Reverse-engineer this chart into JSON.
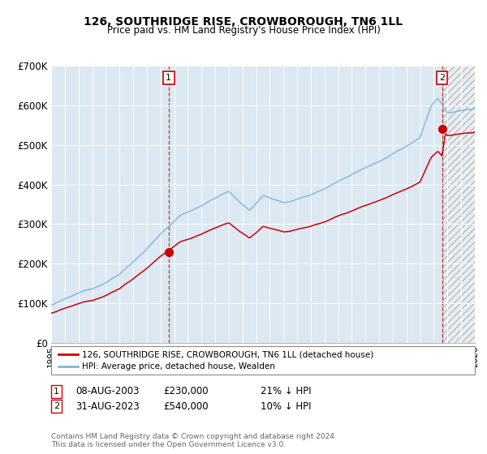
{
  "title": "126, SOUTHRIDGE RISE, CROWBOROUGH, TN6 1LL",
  "subtitle": "Price paid vs. HM Land Registry's House Price Index (HPI)",
  "legend_line1": "126, SOUTHRIDGE RISE, CROWBOROUGH, TN6 1LL (detached house)",
  "legend_line2": "HPI: Average price, detached house, Wealden",
  "transaction1_date": "08-AUG-2003",
  "transaction1_price": 230000,
  "transaction1_label": "21% ↓ HPI",
  "transaction2_date": "31-AUG-2023",
  "transaction2_price": 540000,
  "transaction2_label": "10% ↓ HPI",
  "footer": "Contains HM Land Registry data © Crown copyright and database right 2024.\nThis data is licensed under the Open Government Licence v3.0.",
  "hpi_color": "#7ab8d9",
  "price_color": "#cc0000",
  "bg_color": "#dce8f2",
  "hatch_bg": "#e8e8e8",
  "ylim": [
    0,
    700000
  ],
  "yticks": [
    0,
    100000,
    200000,
    300000,
    400000,
    500000,
    600000,
    700000
  ],
  "xstart": 1995.0,
  "xend": 2026.0,
  "transaction1_x": 2003.6,
  "transaction2_x": 2023.6
}
